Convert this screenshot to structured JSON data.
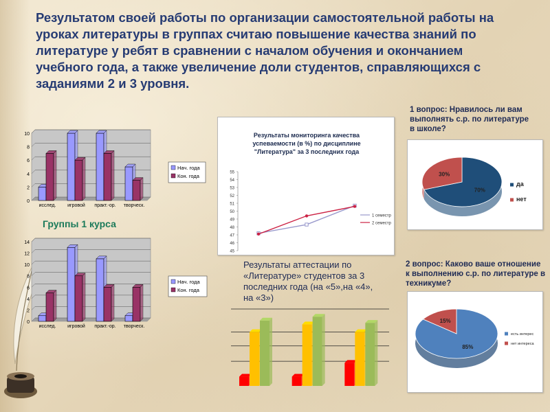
{
  "slide": {
    "heading": "Результатом своей работы по организации самостоятельной работы на уроках литературы в группах считаю повышение качества знаний по литературе у ребят в сравнении с началом обучения и окончанием учебного года, а также увеличение доли студентов, справляющихся с заданиями 2 и 3 уровня.",
    "groups_label": "Группы   1 курса",
    "question1": "1 вопрос:  Нравилось ли вам выполнять с.р. по литературе в школе?",
    "question2": "2 вопрос: Каково ваше отношение к выполнению с.р. по литературе в техникуме?",
    "attestation_caption": "Результаты аттестации по «Литературе» студентов за 3 последних года (на «5»,на «4», на «3»)"
  },
  "colors": {
    "heading": "#263b73",
    "bar_start": "#9999ff",
    "bar_end": "#993366",
    "line_sem1": "#9999cc",
    "line_sem2": "#cc2244",
    "pie_blue": "#1f4e79",
    "pie_red": "#c0504d",
    "pie2_blue": "#4f81bd",
    "bar3_red": "#ff0000",
    "bar3_yellow": "#ffc000",
    "bar3_green": "#9bbb59"
  },
  "chart_data": [
    {
      "id": "groups-bar-top",
      "type": "bar",
      "title": "",
      "categories": [
        "исслед.",
        "игровой",
        "практ.-ор.",
        "творческ."
      ],
      "series": [
        {
          "name": "Нач. года",
          "values": [
            2,
            10,
            10,
            5
          ]
        },
        {
          "name": "Кон. года",
          "values": [
            7,
            6,
            7,
            3
          ]
        }
      ],
      "yticks": [
        "0",
        "2",
        "4",
        "6",
        "8",
        "10"
      ],
      "ylim": [
        0,
        10
      ],
      "grid": true,
      "legend": "right"
    },
    {
      "id": "groups-bar-bottom",
      "type": "bar",
      "title": "",
      "categories": [
        "исслед.",
        "игровой",
        "практ.-ор.",
        "творческ."
      ],
      "series": [
        {
          "name": "Нач. года",
          "values": [
            1,
            13,
            11,
            1
          ]
        },
        {
          "name": "Кон. года",
          "values": [
            5,
            8,
            6,
            6
          ]
        }
      ],
      "yticks": [
        "0",
        "2",
        "4",
        "6",
        "8",
        "10",
        "12",
        "14"
      ],
      "ylim": [
        0,
        14
      ],
      "grid": true,
      "legend": "right"
    },
    {
      "id": "monitoring-line",
      "type": "line",
      "title": "Результаты мониторинга качества успеваемости (в %) по дисциплине \"Литература\" за 3 последних года",
      "x": [
        1,
        2,
        3
      ],
      "series": [
        {
          "name": "1 семестр",
          "values": [
            47.2,
            48.3,
            50.7
          ]
        },
        {
          "name": "2 семестр",
          "values": [
            47.1,
            49.4,
            50.6
          ]
        }
      ],
      "yticks": [
        "45",
        "46",
        "47",
        "48",
        "49",
        "50",
        "51",
        "52",
        "53",
        "54",
        "55"
      ],
      "ylim": [
        45,
        55
      ],
      "legend": "right"
    },
    {
      "id": "pie-question1",
      "type": "pie",
      "title": "",
      "slices": [
        {
          "name": "да",
          "value": 70,
          "label": "70%"
        },
        {
          "name": "нет",
          "value": 30,
          "label": "30%"
        }
      ],
      "legend": "right"
    },
    {
      "id": "pie-question2",
      "type": "pie",
      "title": "",
      "slices": [
        {
          "name": "есть интерес",
          "value": 85,
          "label": "85%"
        },
        {
          "name": "нет интереса",
          "value": 15,
          "label": "15%"
        }
      ],
      "legend": "right"
    },
    {
      "id": "attestation-bar",
      "type": "bar",
      "title": "",
      "categories": [
        "",
        "",
        ""
      ],
      "series": [
        {
          "name": "",
          "values": [
            1.2,
            1.2,
            3.0
          ]
        },
        {
          "name": "",
          "values": [
            7.0,
            8.0,
            7.0
          ]
        },
        {
          "name": "",
          "values": [
            8.5,
            9.0,
            8.2
          ]
        }
      ],
      "ylim": [
        0,
        10
      ],
      "grid": true
    }
  ]
}
